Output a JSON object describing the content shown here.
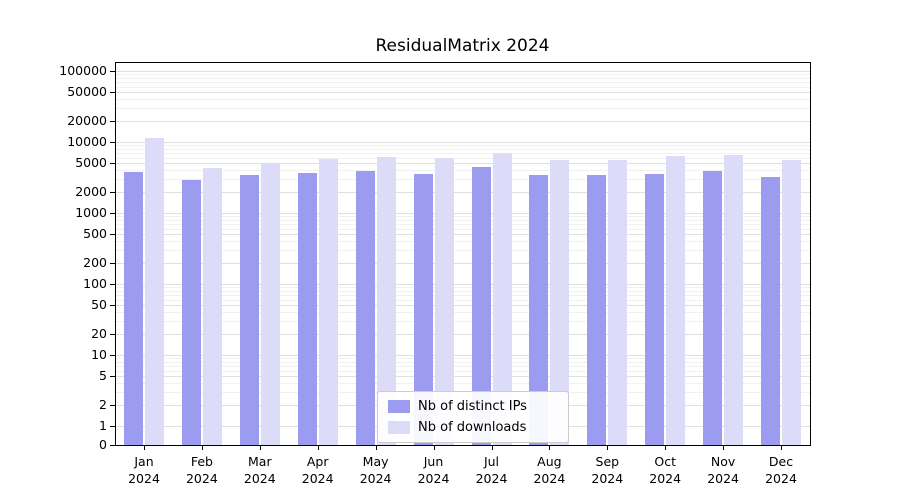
{
  "chart_data": {
    "type": "bar",
    "title": "ResidualMatrix 2024",
    "categories": [
      "Jan",
      "Feb",
      "Mar",
      "Apr",
      "May",
      "Jun",
      "Jul",
      "Aug",
      "Sep",
      "Oct",
      "Nov",
      "Dec"
    ],
    "year_label": "2024",
    "series": [
      {
        "name": "Nb of distinct IPs",
        "color": "#9b9bef",
        "values": [
          3800,
          2900,
          3400,
          3600,
          3900,
          3500,
          4400,
          3400,
          3400,
          3500,
          3900,
          3200
        ]
      },
      {
        "name": "Nb of downloads",
        "color": "#dcdcf8",
        "values": [
          11500,
          4300,
          5000,
          5700,
          6200,
          5900,
          7000,
          5600,
          5500,
          6300,
          6500,
          5500
        ]
      }
    ],
    "yticks": [
      0,
      1,
      2,
      5,
      10,
      20,
      50,
      100,
      200,
      500,
      1000,
      2000,
      5000,
      10000,
      20000,
      50000,
      100000
    ],
    "yscale": "symlog",
    "ylim": [
      0,
      100000
    ],
    "grid": true,
    "legend_position": "lower center"
  }
}
